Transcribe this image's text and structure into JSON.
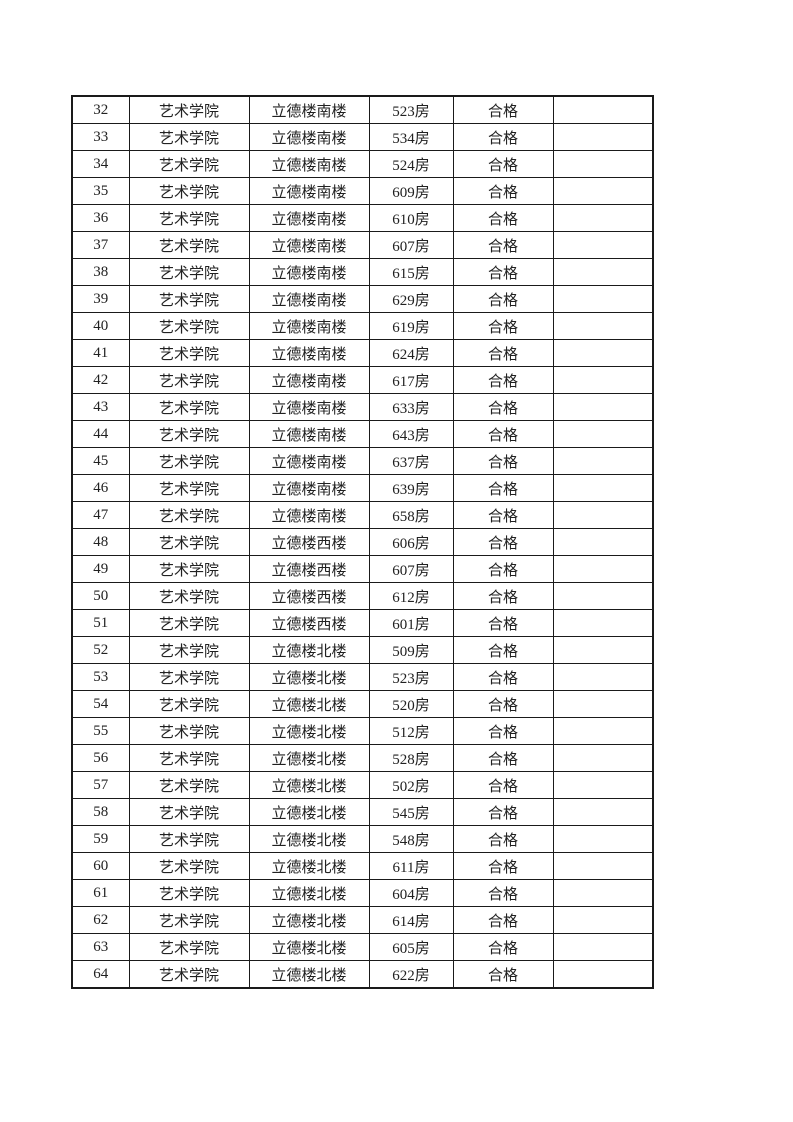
{
  "page": {
    "background_color": "#ffffff"
  },
  "table": {
    "has_header_row": false,
    "field_order": [
      "no",
      "college",
      "building",
      "room",
      "result",
      "remark"
    ],
    "column_ids": [
      "row-number",
      "college",
      "building",
      "room",
      "result",
      "remark"
    ],
    "colors": {
      "border": "#1a1a1a",
      "text": "#212121"
    },
    "rows": [
      {
        "no": "32",
        "college": "艺术学院",
        "building": "立德楼南楼",
        "room": "523房",
        "result": "合格",
        "remark": ""
      },
      {
        "no": "33",
        "college": "艺术学院",
        "building": "立德楼南楼",
        "room": "534房",
        "result": "合格",
        "remark": ""
      },
      {
        "no": "34",
        "college": "艺术学院",
        "building": "立德楼南楼",
        "room": "524房",
        "result": "合格",
        "remark": ""
      },
      {
        "no": "35",
        "college": "艺术学院",
        "building": "立德楼南楼",
        "room": "609房",
        "result": "合格",
        "remark": ""
      },
      {
        "no": "36",
        "college": "艺术学院",
        "building": "立德楼南楼",
        "room": "610房",
        "result": "合格",
        "remark": ""
      },
      {
        "no": "37",
        "college": "艺术学院",
        "building": "立德楼南楼",
        "room": "607房",
        "result": "合格",
        "remark": ""
      },
      {
        "no": "38",
        "college": "艺术学院",
        "building": "立德楼南楼",
        "room": "615房",
        "result": "合格",
        "remark": ""
      },
      {
        "no": "39",
        "college": "艺术学院",
        "building": "立德楼南楼",
        "room": "629房",
        "result": "合格",
        "remark": ""
      },
      {
        "no": "40",
        "college": "艺术学院",
        "building": "立德楼南楼",
        "room": "619房",
        "result": "合格",
        "remark": ""
      },
      {
        "no": "41",
        "college": "艺术学院",
        "building": "立德楼南楼",
        "room": "624房",
        "result": "合格",
        "remark": ""
      },
      {
        "no": "42",
        "college": "艺术学院",
        "building": "立德楼南楼",
        "room": "617房",
        "result": "合格",
        "remark": ""
      },
      {
        "no": "43",
        "college": "艺术学院",
        "building": "立德楼南楼",
        "room": "633房",
        "result": "合格",
        "remark": ""
      },
      {
        "no": "44",
        "college": "艺术学院",
        "building": "立德楼南楼",
        "room": "643房",
        "result": "合格",
        "remark": ""
      },
      {
        "no": "45",
        "college": "艺术学院",
        "building": "立德楼南楼",
        "room": "637房",
        "result": "合格",
        "remark": ""
      },
      {
        "no": "46",
        "college": "艺术学院",
        "building": "立德楼南楼",
        "room": "639房",
        "result": "合格",
        "remark": ""
      },
      {
        "no": "47",
        "college": "艺术学院",
        "building": "立德楼南楼",
        "room": "658房",
        "result": "合格",
        "remark": ""
      },
      {
        "no": "48",
        "college": "艺术学院",
        "building": "立德楼西楼",
        "room": "606房",
        "result": "合格",
        "remark": ""
      },
      {
        "no": "49",
        "college": "艺术学院",
        "building": "立德楼西楼",
        "room": "607房",
        "result": "合格",
        "remark": ""
      },
      {
        "no": "50",
        "college": "艺术学院",
        "building": "立德楼西楼",
        "room": "612房",
        "result": "合格",
        "remark": ""
      },
      {
        "no": "51",
        "college": "艺术学院",
        "building": "立德楼西楼",
        "room": "601房",
        "result": "合格",
        "remark": ""
      },
      {
        "no": "52",
        "college": "艺术学院",
        "building": "立德楼北楼",
        "room": "509房",
        "result": "合格",
        "remark": ""
      },
      {
        "no": "53",
        "college": "艺术学院",
        "building": "立德楼北楼",
        "room": "523房",
        "result": "合格",
        "remark": ""
      },
      {
        "no": "54",
        "college": "艺术学院",
        "building": "立德楼北楼",
        "room": "520房",
        "result": "合格",
        "remark": ""
      },
      {
        "no": "55",
        "college": "艺术学院",
        "building": "立德楼北楼",
        "room": "512房",
        "result": "合格",
        "remark": ""
      },
      {
        "no": "56",
        "college": "艺术学院",
        "building": "立德楼北楼",
        "room": "528房",
        "result": "合格",
        "remark": ""
      },
      {
        "no": "57",
        "college": "艺术学院",
        "building": "立德楼北楼",
        "room": "502房",
        "result": "合格",
        "remark": ""
      },
      {
        "no": "58",
        "college": "艺术学院",
        "building": "立德楼北楼",
        "room": "545房",
        "result": "合格",
        "remark": ""
      },
      {
        "no": "59",
        "college": "艺术学院",
        "building": "立德楼北楼",
        "room": "548房",
        "result": "合格",
        "remark": ""
      },
      {
        "no": "60",
        "college": "艺术学院",
        "building": "立德楼北楼",
        "room": "611房",
        "result": "合格",
        "remark": ""
      },
      {
        "no": "61",
        "college": "艺术学院",
        "building": "立德楼北楼",
        "room": "604房",
        "result": "合格",
        "remark": ""
      },
      {
        "no": "62",
        "college": "艺术学院",
        "building": "立德楼北楼",
        "room": "614房",
        "result": "合格",
        "remark": ""
      },
      {
        "no": "63",
        "college": "艺术学院",
        "building": "立德楼北楼",
        "room": "605房",
        "result": "合格",
        "remark": ""
      },
      {
        "no": "64",
        "college": "艺术学院",
        "building": "立德楼北楼",
        "room": "622房",
        "result": "合格",
        "remark": ""
      }
    ]
  }
}
